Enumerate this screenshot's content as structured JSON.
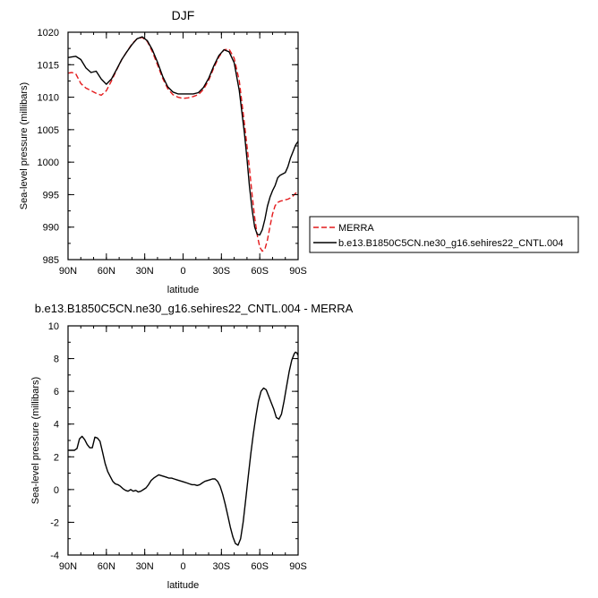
{
  "chart_data": [
    {
      "type": "line",
      "title": "DJF",
      "xlabel": "latitude",
      "ylabel": "Sea-level pressure (millibars)",
      "xlim": [
        90,
        -90
      ],
      "ylim": [
        985,
        1020
      ],
      "x_tick_values": [
        90,
        60,
        30,
        0,
        -30,
        -60,
        -90
      ],
      "x_tick_labels": [
        "90N",
        "60N",
        "30N",
        "0",
        "30S",
        "60S",
        "90S"
      ],
      "y_ticks": [
        985,
        990,
        995,
        1000,
        1005,
        1010,
        1015,
        1020
      ],
      "grid": false,
      "legend_position": "right",
      "series": [
        {
          "name": "MERRA",
          "color": "#e41a1c",
          "dash": "dashed",
          "x": [
            90,
            87,
            84,
            80,
            76,
            72,
            68,
            64,
            60,
            56,
            52,
            48,
            44,
            40,
            36,
            32,
            28,
            24,
            20,
            16,
            12,
            8,
            4,
            0,
            -4,
            -8,
            -12,
            -16,
            -20,
            -24,
            -28,
            -32,
            -36,
            -40,
            -44,
            -48,
            -50,
            -52,
            -54,
            -56,
            -58,
            -60,
            -62,
            -64,
            -66,
            -68,
            -70,
            -72,
            -74,
            -76,
            -78,
            -80,
            -82,
            -84,
            -86,
            -88,
            -90
          ],
          "values": [
            1013.7,
            1013.8,
            1013.6,
            1012.1,
            1011.4,
            1011.0,
            1010.6,
            1010.3,
            1011.0,
            1012.5,
            1014.2,
            1015.8,
            1017.0,
            1018.2,
            1019.0,
            1019.2,
            1018.6,
            1017.0,
            1015.0,
            1012.9,
            1011.3,
            1010.4,
            1010.0,
            1009.8,
            1009.9,
            1010.1,
            1010.4,
            1011.2,
            1012.6,
            1014.5,
            1016.2,
            1017.3,
            1017.4,
            1016.0,
            1012.5,
            1006.0,
            1002.5,
            999.0,
            995.0,
            991.5,
            988.8,
            986.9,
            986.3,
            986.6,
            988.0,
            990.1,
            992.0,
            993.3,
            993.8,
            994.0,
            994.1,
            994.2,
            994.3,
            994.5,
            994.8,
            995.2,
            995.6
          ]
        },
        {
          "name": "b.e13.B1850C5CN.ne30_g16.sehires22_CNTL.004",
          "color": "#000000",
          "dash": "solid",
          "x": [
            90,
            87,
            84,
            80,
            76,
            72,
            68,
            64,
            60,
            56,
            52,
            48,
            44,
            40,
            36,
            32,
            28,
            24,
            20,
            16,
            12,
            8,
            4,
            0,
            -4,
            -8,
            -12,
            -16,
            -20,
            -24,
            -28,
            -32,
            -36,
            -40,
            -44,
            -48,
            -50,
            -52,
            -54,
            -56,
            -58,
            -60,
            -62,
            -64,
            -66,
            -68,
            -70,
            -72,
            -74,
            -76,
            -78,
            -80,
            -82,
            -84,
            -86,
            -88,
            -90
          ],
          "values": [
            1016.1,
            1016.2,
            1016.3,
            1015.8,
            1014.5,
            1013.8,
            1014.0,
            1012.8,
            1012.0,
            1012.8,
            1014.3,
            1015.8,
            1017.0,
            1018.1,
            1019.0,
            1019.3,
            1018.7,
            1017.3,
            1015.4,
            1013.2,
            1011.6,
            1010.8,
            1010.5,
            1010.5,
            1010.5,
            1010.5,
            1010.7,
            1011.5,
            1012.9,
            1014.8,
            1016.4,
            1017.3,
            1017.0,
            1015.3,
            1011.0,
            1004.5,
            1000.5,
            996.2,
            992.7,
            990.0,
            988.9,
            988.8,
            989.6,
            991.2,
            993.2,
            994.6,
            995.6,
            996.4,
            997.6,
            998.0,
            998.2,
            998.4,
            999.3,
            1000.6,
            1001.6,
            1002.6,
            1003.2
          ]
        }
      ]
    },
    {
      "type": "line",
      "title": "b.e13.B1850C5CN.ne30_g16.sehires22_CNTL.004 - MERRA",
      "xlabel": "latitude",
      "ylabel": "Sea-level pressure (millibars)",
      "xlim": [
        90,
        -90
      ],
      "ylim": [
        -4,
        10
      ],
      "x_tick_values": [
        90,
        60,
        30,
        0,
        -30,
        -60,
        -90
      ],
      "x_tick_labels": [
        "90N",
        "60N",
        "30N",
        "0",
        "30S",
        "60S",
        "90S"
      ],
      "y_ticks": [
        -4,
        -2,
        0,
        2,
        4,
        6,
        8,
        10
      ],
      "grid": false,
      "series": [
        {
          "color": "#000000",
          "dash": "solid",
          "x": [
            90,
            87,
            85,
            83,
            81,
            79,
            77,
            75,
            73,
            71,
            69,
            67,
            65,
            63,
            61,
            59,
            57,
            55,
            53,
            51,
            49,
            47,
            45,
            43,
            41,
            39,
            37,
            35,
            33,
            31,
            29,
            27,
            25,
            23,
            21,
            19,
            17,
            15,
            13,
            11,
            9,
            7,
            5,
            3,
            1,
            -1,
            -3,
            -5,
            -7,
            -9,
            -11,
            -13,
            -15,
            -17,
            -19,
            -21,
            -23,
            -25,
            -27,
            -29,
            -31,
            -33,
            -35,
            -37,
            -39,
            -41,
            -43,
            -45,
            -47,
            -49,
            -51,
            -53,
            -55,
            -57,
            -59,
            -61,
            -63,
            -65,
            -67,
            -69,
            -71,
            -73,
            -75,
            -77,
            -79,
            -81,
            -83,
            -85,
            -87,
            -88,
            -89,
            -90
          ],
          "values": [
            2.4,
            2.4,
            2.4,
            2.5,
            3.1,
            3.25,
            3.05,
            2.75,
            2.55,
            2.55,
            3.2,
            3.15,
            2.95,
            2.3,
            1.6,
            1.1,
            0.8,
            0.5,
            0.35,
            0.3,
            0.2,
            0.05,
            -0.05,
            -0.1,
            0.0,
            -0.1,
            -0.05,
            -0.15,
            -0.1,
            0.0,
            0.1,
            0.3,
            0.55,
            0.7,
            0.8,
            0.9,
            0.85,
            0.8,
            0.75,
            0.7,
            0.7,
            0.65,
            0.6,
            0.55,
            0.5,
            0.45,
            0.4,
            0.35,
            0.3,
            0.3,
            0.25,
            0.3,
            0.4,
            0.5,
            0.55,
            0.6,
            0.65,
            0.65,
            0.5,
            0.2,
            -0.3,
            -0.9,
            -1.6,
            -2.3,
            -2.9,
            -3.3,
            -3.4,
            -3.0,
            -2.0,
            -0.6,
            0.8,
            2.2,
            3.4,
            4.5,
            5.4,
            6.0,
            6.2,
            6.1,
            5.7,
            5.3,
            4.9,
            4.4,
            4.3,
            4.6,
            5.4,
            6.3,
            7.2,
            7.9,
            8.3,
            8.4,
            8.35,
            8.2
          ]
        }
      ]
    }
  ]
}
